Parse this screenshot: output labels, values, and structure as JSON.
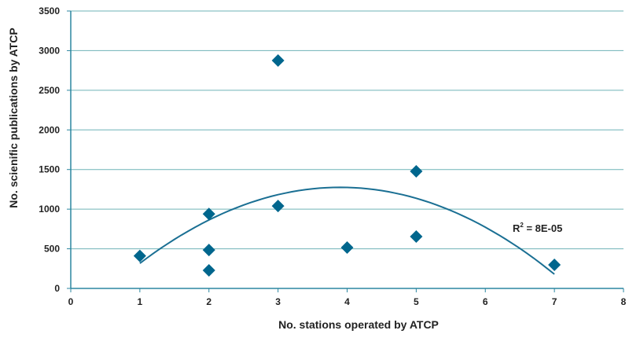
{
  "chart_data": {
    "type": "scatter",
    "title": "",
    "xlabel": "No. stations operated by ATCP",
    "ylabel": "No. scienific publications by ATCP",
    "xlim": [
      0,
      8
    ],
    "ylim": [
      0,
      3500
    ],
    "xticks": [
      0,
      1,
      2,
      3,
      4,
      5,
      6,
      7,
      8
    ],
    "yticks": [
      0,
      500,
      1000,
      1500,
      2000,
      2500,
      3000,
      3500
    ],
    "grid": "horizontal",
    "legend": "none",
    "points": [
      {
        "x": 1,
        "y": 410
      },
      {
        "x": 2,
        "y": 940
      },
      {
        "x": 2,
        "y": 485
      },
      {
        "x": 2,
        "y": 228
      },
      {
        "x": 3,
        "y": 2875
      },
      {
        "x": 3,
        "y": 1040
      },
      {
        "x": 4,
        "y": 515
      },
      {
        "x": 5,
        "y": 1477
      },
      {
        "x": 5,
        "y": 654
      },
      {
        "x": 7,
        "y": 297
      }
    ],
    "trendline": {
      "type": "polynomial-2",
      "x_range": [
        1,
        7
      ],
      "vertex": {
        "x": 3.9,
        "y": 1275
      },
      "a": -114
    },
    "annotation": {
      "r2_label": "R",
      "r2_sup": "2",
      "r2_value": " = 8E-05"
    },
    "colors": {
      "marker": "#00668d",
      "trendline": "#1a6f93",
      "grid": "#6fb3b7",
      "axis": "#2b86a0"
    }
  }
}
